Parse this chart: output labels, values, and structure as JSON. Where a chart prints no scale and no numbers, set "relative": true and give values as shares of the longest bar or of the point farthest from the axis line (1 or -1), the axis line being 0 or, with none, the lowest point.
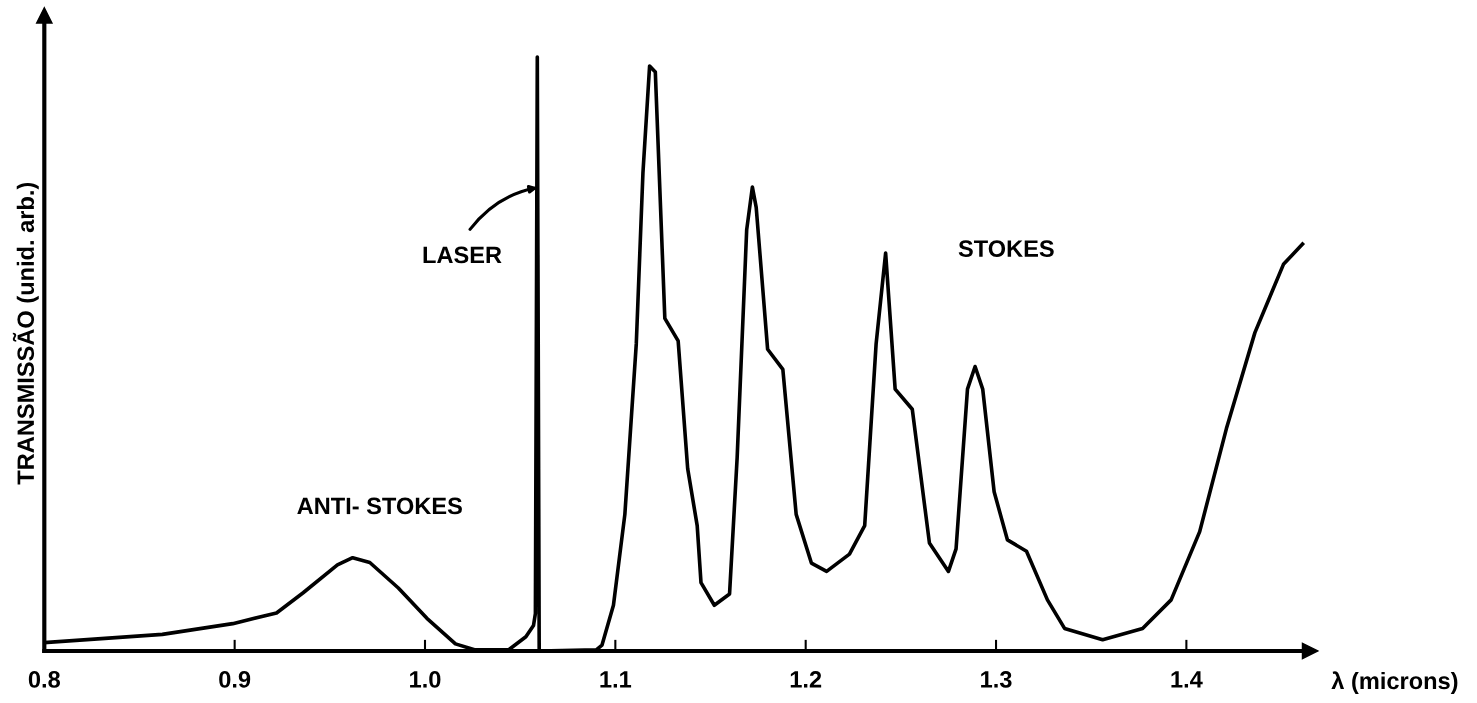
{
  "chart_data": {
    "type": "line",
    "relative": true,
    "xlabel": "λ (microns)",
    "ylabel": "TRANSMISSÃO (unid. arb.)",
    "xlim": [
      0.8,
      1.465
    ],
    "xticks": [
      0.8,
      0.9,
      {
        "value": 1.0,
        "label": "1.0"
      },
      1.1,
      1.2,
      1.3,
      1.4
    ],
    "grid": false,
    "legend": false,
    "marker": "none",
    "line_style": "solid",
    "series": [
      {
        "color": "#000000",
        "x": [
          0.8,
          0.862,
          0.899,
          0.922,
          0.936,
          0.954,
          0.962,
          0.971,
          0.986,
          1.001,
          1.016,
          1.026,
          1.044,
          1.053,
          1.057,
          1.058,
          1.059,
          1.06,
          1.09,
          1.093,
          1.099,
          1.105,
          1.111,
          1.1145,
          1.118,
          1.121,
          1.126,
          1.133,
          1.138,
          1.143,
          1.145,
          1.152,
          1.16,
          1.164,
          1.169,
          1.172,
          1.174,
          1.18,
          1.188,
          1.195,
          1.203,
          1.211,
          1.223,
          1.231,
          1.237,
          1.242,
          1.247,
          1.256,
          1.265,
          1.275,
          1.279,
          1.285,
          1.289,
          1.293,
          1.299,
          1.306,
          1.316,
          1.327,
          1.336,
          1.356,
          1.377,
          1.392,
          1.407,
          1.421,
          1.436,
          1.451,
          1.461
        ],
        "values": [
          0.014,
          0.028,
          0.046,
          0.064,
          0.098,
          0.145,
          0.157,
          0.149,
          0.106,
          0.055,
          0.012,
          0.002,
          0.002,
          0.024,
          0.043,
          0.063,
          1.0,
          0.0,
          0.002,
          0.01,
          0.077,
          0.23,
          0.517,
          0.805,
          0.985,
          0.975,
          0.56,
          0.522,
          0.307,
          0.211,
          0.115,
          0.077,
          0.096,
          0.326,
          0.709,
          0.781,
          0.747,
          0.508,
          0.474,
          0.23,
          0.148,
          0.134,
          0.163,
          0.211,
          0.517,
          0.67,
          0.441,
          0.407,
          0.182,
          0.134,
          0.172,
          0.441,
          0.479,
          0.441,
          0.268,
          0.187,
          0.168,
          0.086,
          0.038,
          0.019,
          0.038,
          0.086,
          0.201,
          0.374,
          0.536,
          0.651,
          0.685
        ]
      }
    ],
    "annotations": [
      "LASER",
      "ANTI- STOKES",
      "STOKES"
    ]
  }
}
